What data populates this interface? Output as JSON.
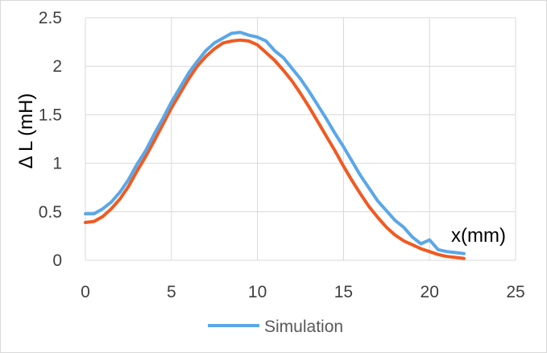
{
  "chart_data": {
    "type": "line",
    "title": "",
    "xlabel": "x(mm)",
    "ylabel": "Δ L (mH)",
    "xlim": [
      0,
      25
    ],
    "ylim": [
      0,
      2.5
    ],
    "x_ticks": [
      "0",
      "5",
      "10",
      "15",
      "20",
      "25"
    ],
    "y_ticks": [
      "0",
      "0.5",
      "1",
      "1.5",
      "2",
      "2.5"
    ],
    "grid": true,
    "legend_position": "bottom",
    "series": [
      {
        "name": "Simulation",
        "color": "#5aa7e8",
        "x": [
          0,
          0.5,
          1,
          1.5,
          2,
          2.5,
          3,
          3.5,
          4,
          4.5,
          5,
          5.5,
          6,
          6.5,
          7,
          7.5,
          8,
          8.5,
          9,
          9.5,
          10,
          10.5,
          11,
          11.5,
          12,
          12.5,
          13,
          13.5,
          14,
          14.5,
          15,
          15.5,
          16,
          16.5,
          17,
          17.5,
          18,
          18.5,
          19,
          19.5,
          20,
          20.5,
          21,
          21.5,
          22
        ],
        "y": [
          0.48,
          0.48,
          0.53,
          0.6,
          0.7,
          0.83,
          0.99,
          1.13,
          1.3,
          1.46,
          1.63,
          1.78,
          1.93,
          2.05,
          2.16,
          2.24,
          2.29,
          2.34,
          2.35,
          2.32,
          2.3,
          2.26,
          2.16,
          2.09,
          1.98,
          1.87,
          1.74,
          1.6,
          1.46,
          1.31,
          1.17,
          1.02,
          0.87,
          0.74,
          0.61,
          0.51,
          0.41,
          0.34,
          0.24,
          0.17,
          0.21,
          0.11,
          0.09,
          0.08,
          0.07
        ]
      },
      {
        "name": "",
        "color": "#f05a22",
        "x": [
          0,
          0.5,
          1,
          1.5,
          2,
          2.5,
          3,
          3.5,
          4,
          4.5,
          5,
          5.5,
          6,
          6.5,
          7,
          7.5,
          8,
          8.5,
          9,
          9.5,
          10,
          10.5,
          11,
          11.5,
          12,
          12.5,
          13,
          13.5,
          14,
          14.5,
          15,
          15.5,
          16,
          16.5,
          17,
          17.5,
          18,
          18.5,
          19,
          19.5,
          20,
          20.5,
          21,
          21.5,
          22
        ],
        "y": [
          0.39,
          0.4,
          0.45,
          0.53,
          0.63,
          0.76,
          0.92,
          1.07,
          1.23,
          1.4,
          1.57,
          1.72,
          1.87,
          2.0,
          2.1,
          2.18,
          2.24,
          2.26,
          2.27,
          2.26,
          2.22,
          2.14,
          2.06,
          1.96,
          1.85,
          1.72,
          1.58,
          1.43,
          1.28,
          1.13,
          0.97,
          0.82,
          0.68,
          0.55,
          0.44,
          0.34,
          0.26,
          0.2,
          0.16,
          0.12,
          0.09,
          0.06,
          0.04,
          0.03,
          0.02
        ]
      }
    ]
  }
}
